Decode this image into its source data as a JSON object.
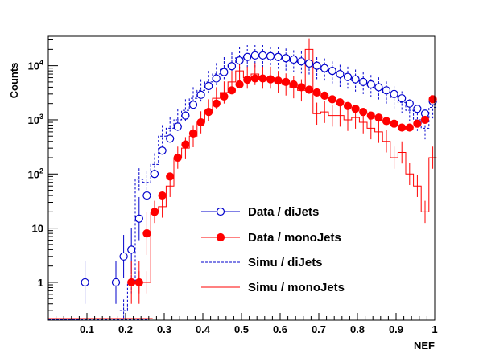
{
  "chart_data": {
    "type": "line",
    "xlabel": "NEF",
    "ylabel": "Counts",
    "xlim": [
      0.0,
      1.0
    ],
    "ylim": [
      0.2,
      35000
    ],
    "yscale": "log",
    "x_ticks": [
      0.1,
      0.2,
      0.3,
      0.4,
      0.5,
      0.6,
      0.7,
      0.8,
      0.9,
      1.0
    ],
    "x_tick_labels": [
      "0.1",
      "0.2",
      "0.3",
      "0.4",
      "0.5",
      "0.6",
      "0.7",
      "0.8",
      "0.9",
      "1"
    ],
    "y_tick_values": [
      1,
      10,
      100,
      1000,
      10000
    ],
    "y_tick_labels": [
      {
        "base": "1",
        "exp": ""
      },
      {
        "base": "10",
        "exp": ""
      },
      {
        "base": "10",
        "exp": "2"
      },
      {
        "base": "10",
        "exp": "3"
      },
      {
        "base": "10",
        "exp": "4"
      }
    ],
    "grid": false,
    "legend_position": "bottom-center",
    "series": [
      {
        "name": "Data / diJets",
        "style": "open-circle",
        "color": "#0000cc",
        "points": [
          [
            0.095,
            1
          ],
          [
            0.175,
            1
          ],
          [
            0.195,
            3
          ],
          [
            0.215,
            4
          ],
          [
            0.235,
            15
          ],
          [
            0.255,
            40
          ],
          [
            0.275,
            100
          ],
          [
            0.295,
            270
          ],
          [
            0.315,
            450
          ],
          [
            0.335,
            750
          ],
          [
            0.355,
            1200
          ],
          [
            0.375,
            1900
          ],
          [
            0.395,
            2900
          ],
          [
            0.415,
            4200
          ],
          [
            0.435,
            5800
          ],
          [
            0.455,
            7600
          ],
          [
            0.475,
            9800
          ],
          [
            0.495,
            12500
          ],
          [
            0.515,
            14500
          ],
          [
            0.535,
            15500
          ],
          [
            0.555,
            15500
          ],
          [
            0.575,
            15000
          ],
          [
            0.595,
            14500
          ],
          [
            0.615,
            13800
          ],
          [
            0.635,
            13000
          ],
          [
            0.655,
            12000
          ],
          [
            0.675,
            11000
          ],
          [
            0.695,
            10000
          ],
          [
            0.715,
            9000
          ],
          [
            0.735,
            8000
          ],
          [
            0.755,
            7000
          ],
          [
            0.775,
            6200
          ],
          [
            0.795,
            5600
          ],
          [
            0.815,
            5000
          ],
          [
            0.835,
            4500
          ],
          [
            0.855,
            4000
          ],
          [
            0.875,
            3500
          ],
          [
            0.895,
            3000
          ],
          [
            0.915,
            2500
          ],
          [
            0.935,
            2000
          ],
          [
            0.955,
            1600
          ],
          [
            0.975,
            1300
          ],
          [
            0.995,
            2200
          ]
        ]
      },
      {
        "name": "Data / monoJets",
        "style": "filled-circle",
        "color": "#ff0000",
        "points": [
          [
            0.215,
            1
          ],
          [
            0.235,
            1
          ],
          [
            0.255,
            8
          ],
          [
            0.275,
            20
          ],
          [
            0.295,
            40
          ],
          [
            0.315,
            90
          ],
          [
            0.335,
            200
          ],
          [
            0.355,
            350
          ],
          [
            0.375,
            560
          ],
          [
            0.395,
            900
          ],
          [
            0.415,
            1400
          ],
          [
            0.435,
            2000
          ],
          [
            0.455,
            2700
          ],
          [
            0.475,
            3500
          ],
          [
            0.495,
            4500
          ],
          [
            0.515,
            5500
          ],
          [
            0.535,
            5800
          ],
          [
            0.555,
            5800
          ],
          [
            0.575,
            5600
          ],
          [
            0.595,
            5300
          ],
          [
            0.615,
            5000
          ],
          [
            0.635,
            4500
          ],
          [
            0.655,
            4000
          ],
          [
            0.675,
            3600
          ],
          [
            0.695,
            3200
          ],
          [
            0.715,
            2800
          ],
          [
            0.735,
            2400
          ],
          [
            0.755,
            2100
          ],
          [
            0.775,
            1800
          ],
          [
            0.795,
            1600
          ],
          [
            0.815,
            1400
          ],
          [
            0.835,
            1200
          ],
          [
            0.855,
            1100
          ],
          [
            0.875,
            950
          ],
          [
            0.895,
            850
          ],
          [
            0.915,
            720
          ],
          [
            0.935,
            720
          ],
          [
            0.955,
            850
          ],
          [
            0.975,
            1000
          ],
          [
            0.995,
            2400
          ]
        ]
      },
      {
        "name": "Simu / diJets",
        "style": "dashed-histogram",
        "color": "#0000cc",
        "points": [
          [
            0.195,
            0.3
          ],
          [
            0.215,
            1
          ],
          [
            0.235,
            80
          ],
          [
            0.255,
            70
          ],
          [
            0.275,
            150
          ],
          [
            0.295,
            500
          ],
          [
            0.315,
            700
          ],
          [
            0.335,
            1000
          ],
          [
            0.355,
            1500
          ],
          [
            0.375,
            2500
          ],
          [
            0.395,
            3500
          ],
          [
            0.415,
            5000
          ],
          [
            0.435,
            7000
          ],
          [
            0.455,
            9000
          ],
          [
            0.475,
            11000
          ],
          [
            0.495,
            14000
          ],
          [
            0.515,
            15000
          ],
          [
            0.535,
            15000
          ],
          [
            0.555,
            15000
          ],
          [
            0.575,
            14000
          ],
          [
            0.595,
            14000
          ],
          [
            0.615,
            13000
          ],
          [
            0.635,
            12000
          ],
          [
            0.655,
            11500
          ],
          [
            0.675,
            11000
          ],
          [
            0.695,
            9000
          ],
          [
            0.715,
            8500
          ],
          [
            0.735,
            7500
          ],
          [
            0.755,
            6500
          ],
          [
            0.775,
            6000
          ],
          [
            0.795,
            5300
          ],
          [
            0.815,
            4800
          ],
          [
            0.835,
            4200
          ],
          [
            0.855,
            3800
          ],
          [
            0.875,
            3200
          ],
          [
            0.895,
            2600
          ],
          [
            0.915,
            2100
          ],
          [
            0.935,
            1500
          ],
          [
            0.955,
            1000
          ],
          [
            0.975,
            700
          ],
          [
            0.995,
            1700
          ]
        ]
      },
      {
        "name": "Simu / monoJets",
        "style": "solid-histogram",
        "color": "#ff0000",
        "points": [
          [
            0.235,
            1
          ],
          [
            0.255,
            1
          ],
          [
            0.275,
            20
          ],
          [
            0.295,
            25
          ],
          [
            0.315,
            60
          ],
          [
            0.335,
            200
          ],
          [
            0.355,
            300
          ],
          [
            0.375,
            500
          ],
          [
            0.395,
            900
          ],
          [
            0.415,
            1500
          ],
          [
            0.435,
            2500
          ],
          [
            0.455,
            3200
          ],
          [
            0.475,
            5000
          ],
          [
            0.495,
            8000
          ],
          [
            0.515,
            6000
          ],
          [
            0.535,
            7000
          ],
          [
            0.555,
            6000
          ],
          [
            0.575,
            6000
          ],
          [
            0.595,
            5000
          ],
          [
            0.615,
            4500
          ],
          [
            0.635,
            4000
          ],
          [
            0.655,
            3500
          ],
          [
            0.675,
            20000
          ],
          [
            0.695,
            1300
          ],
          [
            0.715,
            1400
          ],
          [
            0.735,
            1200
          ],
          [
            0.755,
            1200
          ],
          [
            0.775,
            1000
          ],
          [
            0.795,
            1100
          ],
          [
            0.815,
            900
          ],
          [
            0.835,
            700
          ],
          [
            0.855,
            600
          ],
          [
            0.875,
            400
          ],
          [
            0.895,
            200
          ],
          [
            0.915,
            250
          ],
          [
            0.935,
            100
          ],
          [
            0.955,
            60
          ],
          [
            0.975,
            20
          ],
          [
            0.995,
            200
          ]
        ]
      }
    ]
  }
}
